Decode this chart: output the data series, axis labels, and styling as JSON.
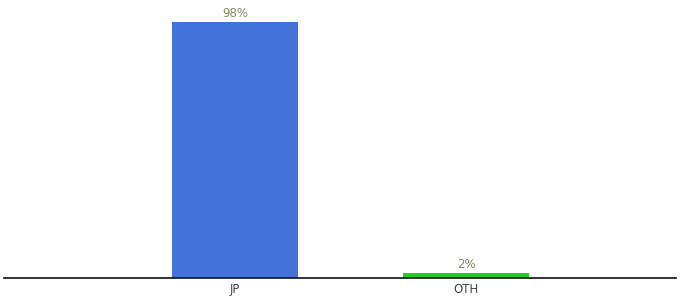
{
  "categories": [
    "JP",
    "OTH"
  ],
  "values": [
    98,
    2
  ],
  "bar_colors": [
    "#4472db",
    "#22cc22"
  ],
  "label_color": "#888866",
  "ylim": [
    0,
    105
  ],
  "background_color": "#ffffff",
  "bar_width": 0.6,
  "label_fontsize": 8.5,
  "tick_fontsize": 8.5,
  "xlim": [
    -0.8,
    2.4
  ]
}
